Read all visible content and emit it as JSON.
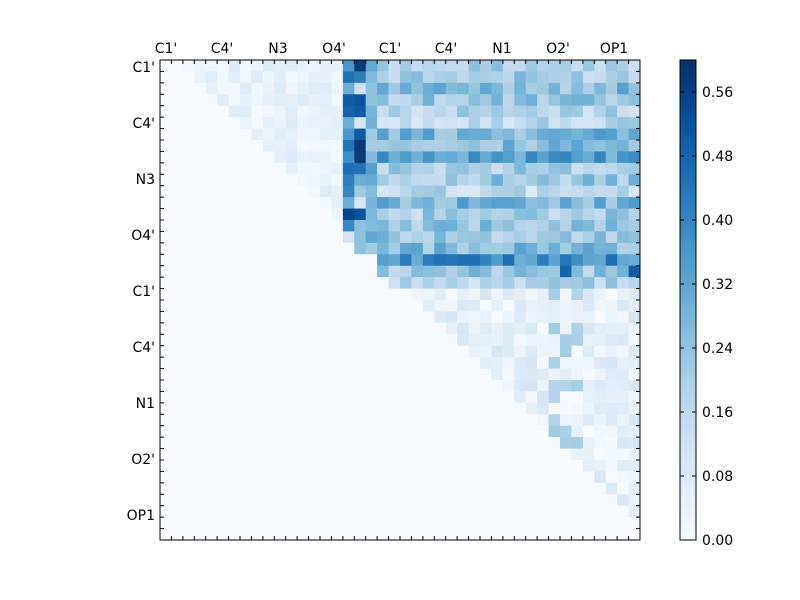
{
  "chart_data": {
    "type": "heatmap",
    "title": "",
    "xlabel": "",
    "ylabel": "",
    "x_tick_labels": [
      "C1'",
      "C4'",
      "N3",
      "O4'",
      "C1'",
      "C4'",
      "N1",
      "O2'",
      "OP1"
    ],
    "y_tick_labels": [
      "C1'",
      "C4'",
      "N3",
      "O4'",
      "C1'",
      "C4'",
      "N1",
      "O2'",
      "OP1"
    ],
    "colorbar": {
      "cmap": "Blues",
      "vmin": 0.0,
      "vmax": 0.6,
      "ticks": [
        "0.00",
        "0.08",
        "0.16",
        "0.24",
        "0.32",
        "0.40",
        "0.48",
        "0.56"
      ]
    },
    "grid": false,
    "matrix_size": 42,
    "blocks": [
      {
        "region": "rows 0-15 × cols 0-15 (upper triangle)",
        "typical_value": 0.03
      },
      {
        "region": "rows 0-15 × col 17 (column peak)",
        "typical_value": 0.48,
        "peak": 0.6
      },
      {
        "region": "rows 0-19 × cols 19-41 (off-diagonal block)",
        "typical_value": 0.28,
        "peak": 0.5
      },
      {
        "region": "rows 19-41 × cols 19-41 (upper triangle)",
        "typical_value": 0.05,
        "peak": 0.24
      }
    ]
  }
}
